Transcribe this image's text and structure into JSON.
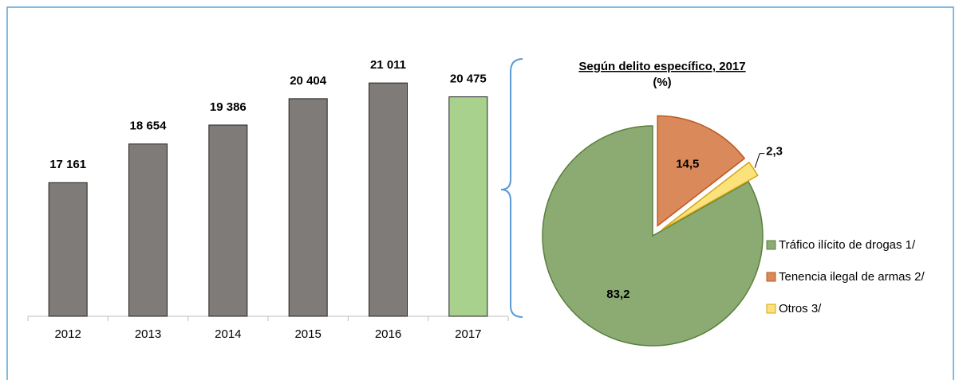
{
  "chart_data": [
    {
      "type": "bar",
      "categories": [
        "2012",
        "2013",
        "2014",
        "2015",
        "2016",
        "2017"
      ],
      "values": [
        17161,
        18654,
        19386,
        20404,
        21011,
        20475
      ],
      "value_labels": [
        "17 161",
        "18 654",
        "19 386",
        "20 404",
        "21 011",
        "20 475"
      ],
      "colors": [
        "#7f7b78",
        "#7f7b78",
        "#7f7b78",
        "#7f7b78",
        "#7f7b78",
        "#a9d18e"
      ],
      "ylim": [
        12000,
        22000
      ]
    },
    {
      "type": "pie",
      "title": "Según delito específico, 2017",
      "subtitle": "(%)",
      "categories": [
        "Tráfico ilícito de drogas 1/",
        "Tenencia ilegal de armas 2/",
        "Otros 3/"
      ],
      "values": [
        83.2,
        14.5,
        2.3
      ],
      "value_labels": [
        "83,2",
        "14,5",
        "2,3"
      ],
      "colors": [
        "#8bab72",
        "#d9895a",
        "#fbe27a"
      ],
      "legend": "right"
    }
  ]
}
